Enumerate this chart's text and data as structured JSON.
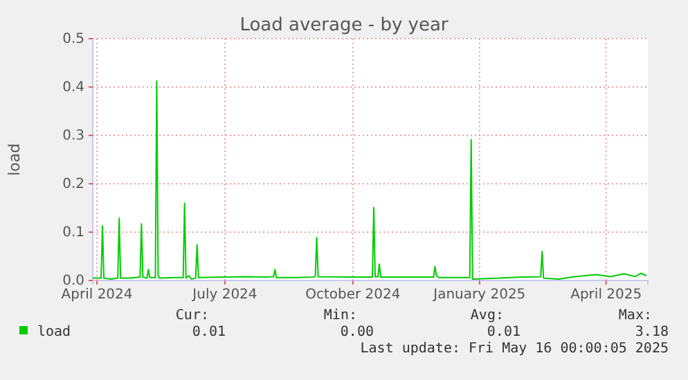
{
  "chart_data": {
    "type": "line",
    "title": "Load average - by year",
    "ylabel": "load",
    "x": [
      "2024-04-13",
      "2024-04-19",
      "2024-04-20",
      "2024-04-21",
      "2024-04-26",
      "2024-05-01",
      "2024-05-02",
      "2024-05-03",
      "2024-05-10",
      "2024-05-17",
      "2024-05-18",
      "2024-05-19",
      "2024-05-22",
      "2024-05-23",
      "2024-05-24",
      "2024-05-28",
      "2024-05-29",
      "2024-05-30",
      "2024-05-31",
      "2024-06-10",
      "2024-06-17",
      "2024-06-18",
      "2024-06-19",
      "2024-06-21",
      "2024-06-23",
      "2024-06-26",
      "2024-06-27",
      "2024-06-28",
      "2024-07-15",
      "2024-08-01",
      "2024-08-15",
      "2024-08-21",
      "2024-08-22",
      "2024-08-23",
      "2024-09-05",
      "2024-09-19",
      "2024-09-20",
      "2024-09-21",
      "2024-09-22",
      "2024-10-15",
      "2024-10-31",
      "2024-11-01",
      "2024-11-02",
      "2024-11-04",
      "2024-11-05",
      "2024-11-06",
      "2024-11-25",
      "2024-12-14",
      "2024-12-15",
      "2024-12-16",
      "2024-12-18",
      "2025-01-09",
      "2025-01-10",
      "2025-01-11",
      "2025-01-30",
      "2025-02-15",
      "2025-03-01",
      "2025-03-02",
      "2025-03-03",
      "2025-03-14",
      "2025-03-25",
      "2025-04-10",
      "2025-04-20",
      "2025-04-30",
      "2025-05-08",
      "2025-05-12",
      "2025-05-16"
    ],
    "series": [
      {
        "name": "load",
        "color": "#00cc00",
        "values": [
          0.005,
          0.005,
          0.113,
          0.005,
          0.003,
          0.005,
          0.129,
          0.005,
          0.005,
          0.007,
          0.117,
          0.007,
          0.005,
          0.023,
          0.006,
          0.006,
          0.413,
          0.01,
          0.005,
          0.006,
          0.006,
          0.16,
          0.005,
          0.01,
          0.003,
          0.005,
          0.074,
          0.006,
          0.007,
          0.008,
          0.007,
          0.008,
          0.023,
          0.006,
          0.006,
          0.007,
          0.01,
          0.089,
          0.008,
          0.007,
          0.007,
          0.151,
          0.008,
          0.008,
          0.034,
          0.007,
          0.007,
          0.007,
          0.029,
          0.01,
          0.006,
          0.006,
          0.291,
          0.003,
          0.005,
          0.007,
          0.008,
          0.06,
          0.005,
          0.003,
          0.008,
          0.012,
          0.008,
          0.014,
          0.008,
          0.015,
          0.01
        ]
      }
    ],
    "xlim": [
      "2024-04-13",
      "2025-05-17"
    ],
    "xticks": [
      {
        "value": "2024-04-16",
        "label": "April 2024"
      },
      {
        "value": "2024-07-17",
        "label": "July 2024"
      },
      {
        "value": "2024-10-17",
        "label": "October 2024"
      },
      {
        "value": "2025-01-16",
        "label": "January 2025"
      },
      {
        "value": "2025-04-17",
        "label": "April 2025"
      }
    ],
    "ylim": [
      0,
      0.5
    ],
    "yticks": [
      {
        "value": 0,
        "label": "0.0"
      },
      0.1,
      0.2,
      0.3,
      0.4,
      0.5
    ],
    "grid": true,
    "legend": "bottom",
    "annotations": [
      "Cur:",
      "0.01",
      "Min:",
      "0.00",
      "Avg:",
      "0.01",
      "Max:",
      "3.18",
      "Last update: Fri May 16 00:00:05 2025"
    ]
  }
}
